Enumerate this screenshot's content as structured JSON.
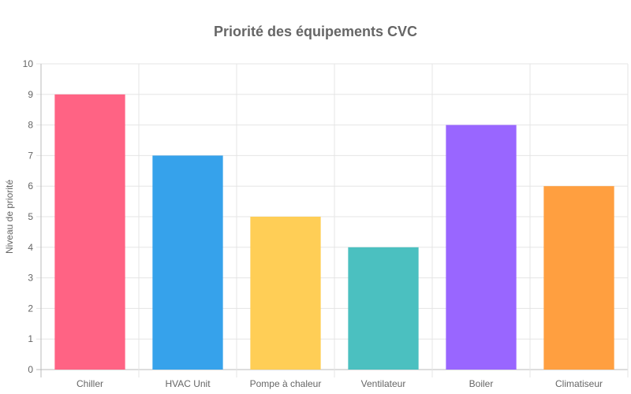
{
  "chart_data": {
    "type": "bar",
    "title": "Priorité des équipements CVC",
    "xlabel": "",
    "ylabel": "Niveau de priorité",
    "categories": [
      "Chiller",
      "HVAC Unit",
      "Pompe à chaleur",
      "Ventilateur",
      "Boiler",
      "Climatiseur"
    ],
    "values": [
      9,
      7,
      5,
      4,
      8,
      6
    ],
    "colors": [
      "#ff6384",
      "#36a2eb",
      "#ffce56",
      "#4bc0c0",
      "#9966ff",
      "#ff9f40"
    ],
    "ylim": [
      0,
      10
    ],
    "yticks": [
      0,
      1,
      2,
      3,
      4,
      5,
      6,
      7,
      8,
      9,
      10
    ],
    "grid": true,
    "legend": "none"
  }
}
